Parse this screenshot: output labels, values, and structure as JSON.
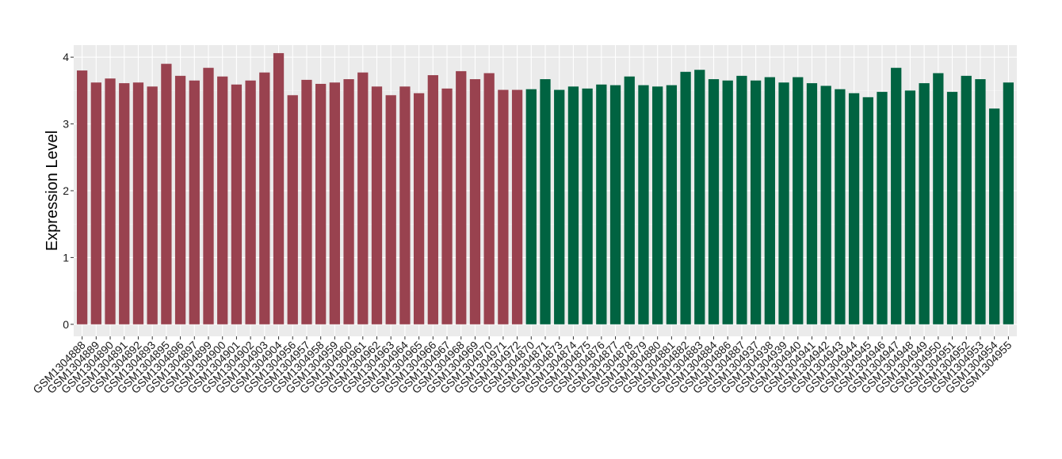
{
  "chart_data": {
    "type": "bar",
    "title": "",
    "xlabel": "",
    "ylabel": "Expression Level",
    "ylim": [
      -0.18,
      4.18
    ],
    "yticks": [
      0,
      1,
      2,
      3,
      4
    ],
    "grid": true,
    "legend": "none",
    "categories": [
      "GSM1304888",
      "GSM1304889",
      "GSM1304890",
      "GSM1304891",
      "GSM1304892",
      "GSM1304893",
      "GSM1304895",
      "GSM1304896",
      "GSM1304897",
      "GSM1304899",
      "GSM1304900",
      "GSM1304901",
      "GSM1304902",
      "GSM1304903",
      "GSM1304904",
      "GSM1304956",
      "GSM1304957",
      "GSM1304958",
      "GSM1304959",
      "GSM1304960",
      "GSM1304961",
      "GSM1304962",
      "GSM1304963",
      "GSM1304964",
      "GSM1304965",
      "GSM1304966",
      "GSM1304967",
      "GSM1304968",
      "GSM1304969",
      "GSM1304970",
      "GSM1304971",
      "GSM1304972",
      "GSM1304870",
      "GSM1304871",
      "GSM1304873",
      "GSM1304874",
      "GSM1304875",
      "GSM1304876",
      "GSM1304877",
      "GSM1304878",
      "GSM1304879",
      "GSM1304880",
      "GSM1304881",
      "GSM1304882",
      "GSM1304883",
      "GSM1304884",
      "GSM1304886",
      "GSM1304887",
      "GSM1304937",
      "GSM1304938",
      "GSM1304939",
      "GSM1304940",
      "GSM1304941",
      "GSM1304942",
      "GSM1304943",
      "GSM1304944",
      "GSM1304945",
      "GSM1304946",
      "GSM1304947",
      "GSM1304948",
      "GSM1304949",
      "GSM1304950",
      "GSM1304951",
      "GSM1304952",
      "GSM1304953",
      "GSM1304954",
      "GSM1304955"
    ],
    "values": [
      3.8,
      3.62,
      3.68,
      3.61,
      3.62,
      3.56,
      3.9,
      3.72,
      3.65,
      3.84,
      3.71,
      3.59,
      3.65,
      3.77,
      4.06,
      3.43,
      3.66,
      3.6,
      3.62,
      3.67,
      3.77,
      3.56,
      3.43,
      3.56,
      3.46,
      3.73,
      3.53,
      3.79,
      3.67,
      3.76,
      3.51,
      3.51,
      3.52,
      3.67,
      3.51,
      3.56,
      3.53,
      3.59,
      3.58,
      3.71,
      3.58,
      3.56,
      3.58,
      3.78,
      3.81,
      3.67,
      3.65,
      3.72,
      3.65,
      3.7,
      3.62,
      3.7,
      3.61,
      3.57,
      3.52,
      3.46,
      3.4,
      3.48,
      3.84,
      3.5,
      3.61,
      3.76,
      3.48,
      3.72,
      3.67,
      3.23,
      3.62
    ],
    "group_sizes": [
      32,
      35
    ],
    "colors": {
      "group1": "#99424f",
      "group2": "#006341",
      "panel": "#ebebeb",
      "grid_major": "#ffffff",
      "grid_minor": "#f5f5f5",
      "tick": "#333333"
    }
  }
}
